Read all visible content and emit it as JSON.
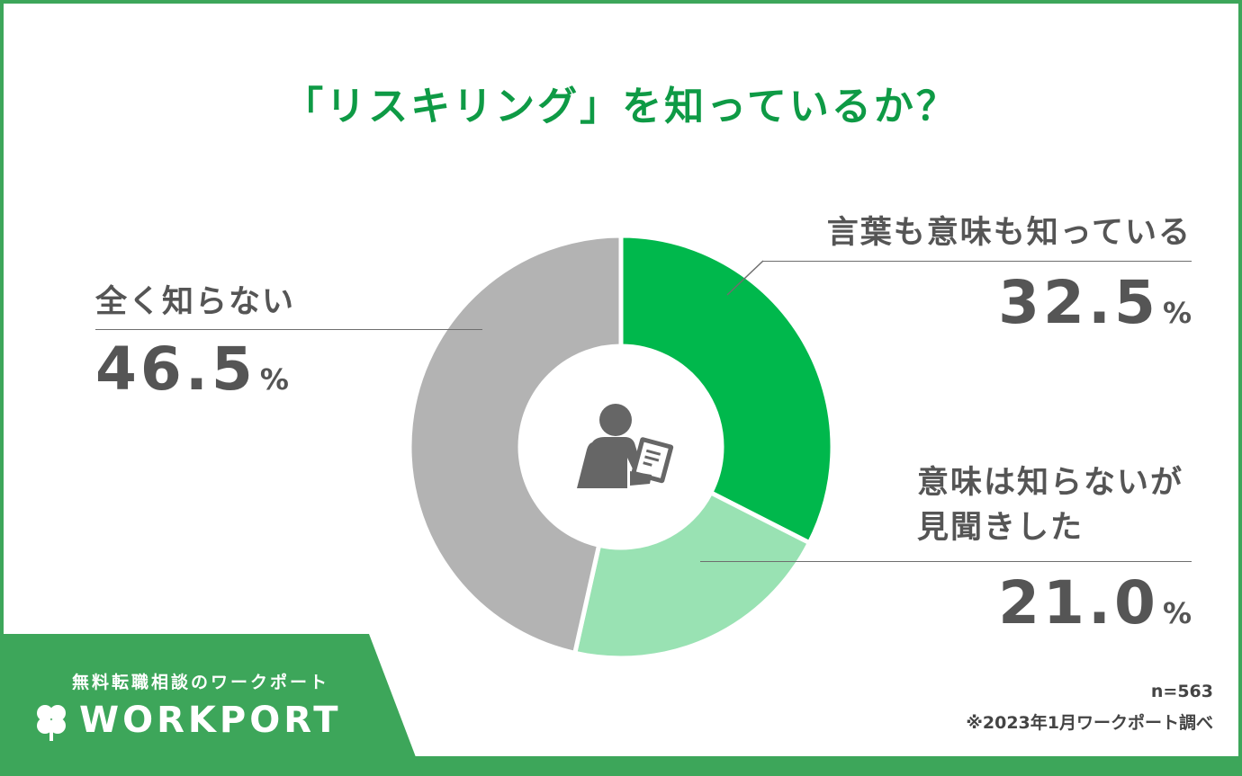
{
  "chart_data": {
    "type": "donut",
    "title": "「リスキリング」を知っているか？",
    "categories": [
      "言葉も意味も知っている",
      "意味は知らないが見聞きした",
      "全く知らない"
    ],
    "values": [
      32.5,
      21.0,
      46.5
    ],
    "value_texts": [
      "32.5",
      "21.0",
      "46.5"
    ],
    "unit": "%",
    "colors": [
      "#00b84c",
      "#99e2b3",
      "#b3b3b3"
    ],
    "label_lines": [
      [
        "言葉も意味も知っている"
      ],
      [
        "意味は知らないが",
        "見聞きした"
      ],
      [
        "全く知らない"
      ]
    ],
    "center_icon": "person-writing-icon",
    "legend": "none"
  },
  "footer": {
    "sample": "n=563",
    "source": "※2023年1月ワークポート調べ"
  },
  "brand": {
    "tagline": "無料転職相談のワークポート",
    "logo_text": "WORKPORT",
    "logo_icon": "clover-icon"
  }
}
